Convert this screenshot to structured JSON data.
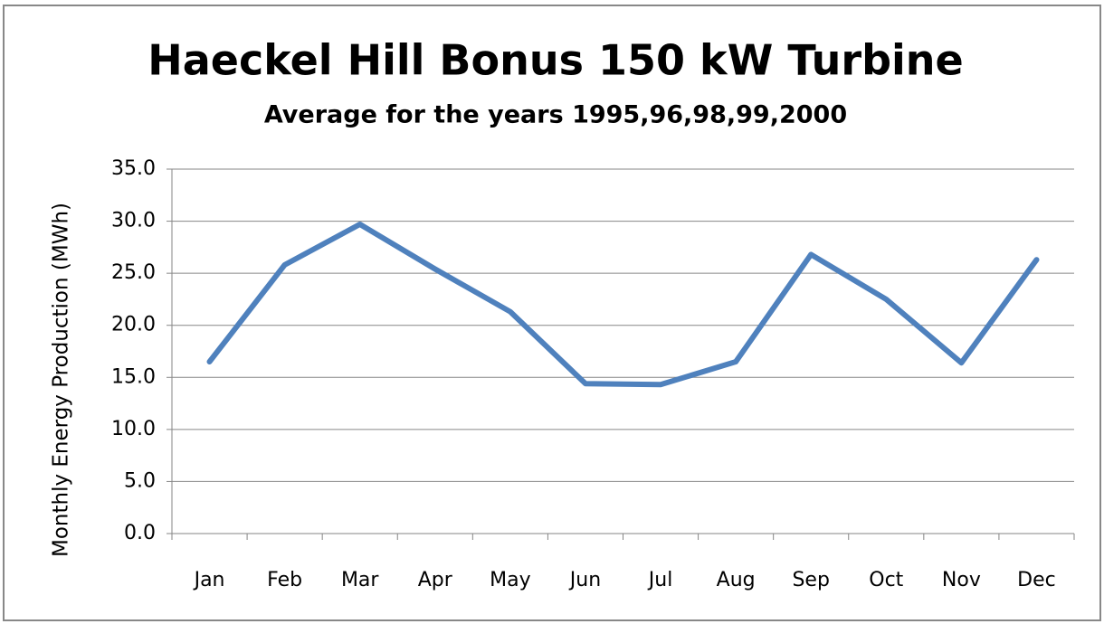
{
  "chart_data": {
    "type": "line",
    "title": "Haeckel Hill Bonus 150 kW Turbine",
    "subtitle": "Average for the years 1995,96,98,99,2000",
    "y_label": "Monthly Energy Production (MWh)",
    "categories": [
      "Jan",
      "Feb",
      "Mar",
      "Apr",
      "May",
      "Jun",
      "Jul",
      "Aug",
      "Sep",
      "Oct",
      "Nov",
      "Dec"
    ],
    "values": [
      16.5,
      25.8,
      29.7,
      25.4,
      21.3,
      14.4,
      14.3,
      16.5,
      26.8,
      22.5,
      16.4,
      26.3
    ],
    "color": "#4f81bd",
    "ylim": [
      0,
      35
    ],
    "yticks": [
      {
        "value": 0,
        "label": "0.0"
      },
      {
        "value": 5,
        "label": "5.0"
      },
      {
        "value": 10,
        "label": "10.0"
      },
      {
        "value": 15,
        "label": "15.0"
      },
      {
        "value": 20,
        "label": "20.0"
      },
      {
        "value": 25,
        "label": "25.0"
      },
      {
        "value": 30,
        "label": "30.0"
      },
      {
        "value": 35,
        "label": "35.0"
      }
    ],
    "grid": true
  }
}
